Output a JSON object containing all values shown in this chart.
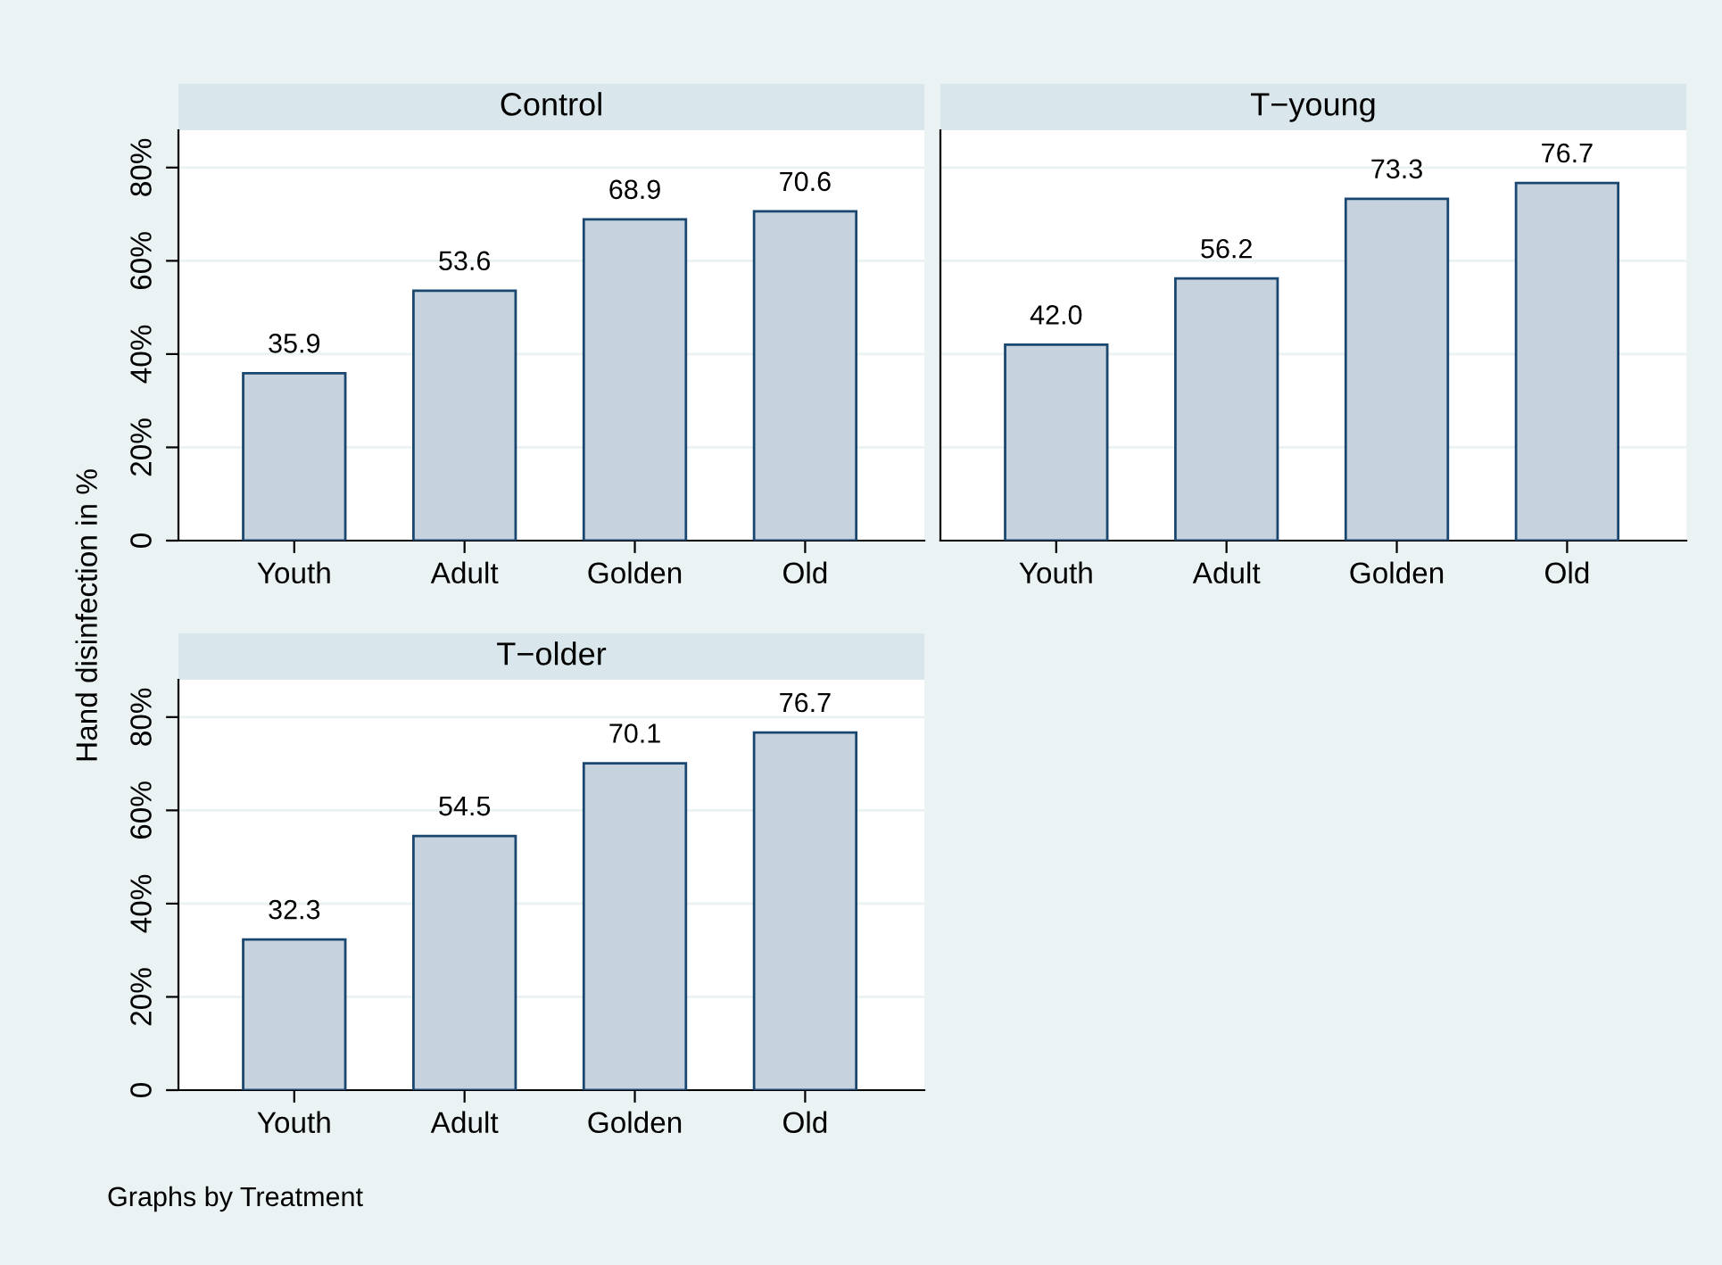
{
  "chart_data": [
    {
      "type": "bar",
      "title": "Control",
      "ylabel": "Hand disinfection in %",
      "categories": [
        "Youth",
        "Adult",
        "Golden",
        "Old"
      ],
      "values": [
        35.9,
        53.6,
        68.9,
        70.6
      ],
      "value_labels": [
        "35.9",
        "53.6",
        "68.9",
        "70.6"
      ],
      "color": "#c6d3df",
      "ylim": [
        0,
        88
      ],
      "yticks": [
        0,
        {
          "value": 20,
          "label": "20%"
        },
        {
          "value": 40,
          "label": "40%"
        },
        {
          "value": 60,
          "label": "60%"
        },
        {
          "value": 80,
          "label": "80%"
        }
      ],
      "grid": "y"
    },
    {
      "type": "bar",
      "title": "T−young",
      "categories": [
        "Youth",
        "Adult",
        "Golden",
        "Old"
      ],
      "values": [
        42.0,
        56.2,
        73.3,
        76.7
      ],
      "value_labels": [
        "42.0",
        "56.2",
        "73.3",
        "76.7"
      ],
      "color": "#c6d3df",
      "ylim": [
        0,
        88
      ],
      "yticks": [
        {
          "value": 0,
          "label": null
        },
        {
          "value": 20,
          "label": null
        },
        {
          "value": 40,
          "label": null
        },
        {
          "value": 60,
          "label": null
        },
        {
          "value": 80,
          "label": null
        }
      ],
      "grid": "y",
      "tick_labels": "x"
    },
    {
      "type": "bar",
      "title": "T−older",
      "categories": [
        "Youth",
        "Adult",
        "Golden",
        "Old"
      ],
      "values": [
        32.3,
        54.5,
        70.1,
        76.7
      ],
      "value_labels": [
        "32.3",
        "54.5",
        "70.1",
        "76.7"
      ],
      "color": "#c6d3df",
      "ylim": [
        0,
        88
      ],
      "yticks": [
        0,
        {
          "value": 20,
          "label": "20%"
        },
        {
          "value": 40,
          "label": "40%"
        },
        {
          "value": 60,
          "label": "60%"
        },
        {
          "value": 80,
          "label": "80%"
        }
      ],
      "grid": "y",
      "annotations": [
        "Graphs by Treatment"
      ]
    }
  ]
}
